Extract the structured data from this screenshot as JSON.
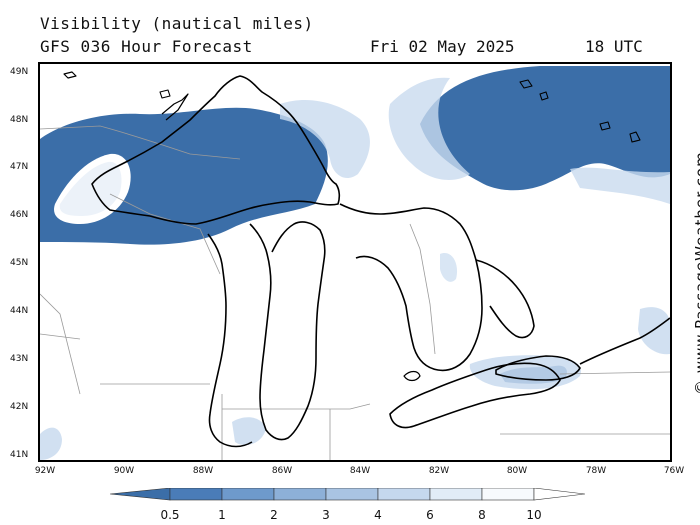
{
  "header": {
    "title": "Visibility (nautical miles)",
    "subtitle": "GFS 036 Hour Forecast",
    "date": "Fri 02 May 2025",
    "time": "18 UTC"
  },
  "watermark": "© www.PassageWeather.com",
  "axes": {
    "lat_labels": [
      "49N",
      "48N",
      "47N",
      "46N",
      "45N",
      "44N",
      "43N",
      "42N",
      "41N"
    ],
    "lon_labels": [
      "92W",
      "90W",
      "88W",
      "86W",
      "84W",
      "82W",
      "80W",
      "78W",
      "76W"
    ]
  },
  "legend": {
    "ticks": [
      "0.5",
      "1",
      "2",
      "3",
      "4",
      "6",
      "8",
      "10"
    ],
    "colors": [
      "#3b6ea8",
      "#4a7cb8",
      "#6e9acc",
      "#8db0d8",
      "#a9c4e3",
      "#c5d8ee",
      "#e1ecf7",
      "#f7fafd"
    ]
  },
  "colors": {
    "fog_dark": "#3b6ea8",
    "fog_mid": "#8db0d8",
    "fog_light": "#c9dbef",
    "land": "#ffffff"
  }
}
